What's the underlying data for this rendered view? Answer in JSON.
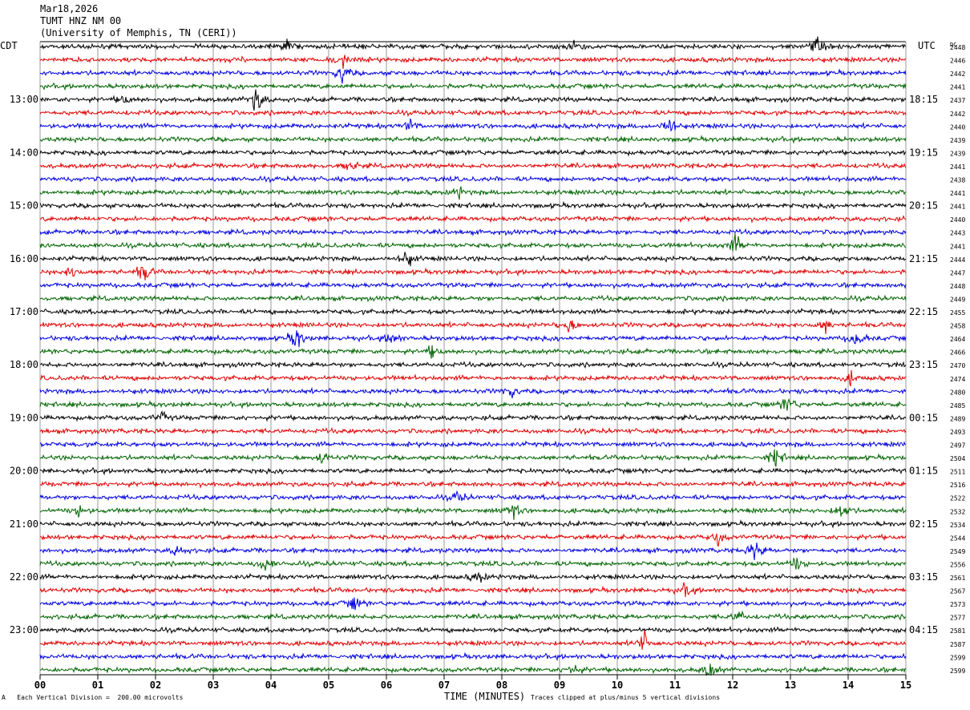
{
  "header": {
    "date": "Mar18,2026",
    "station": "TUMT HNZ NM 00",
    "institution": "(University of Memphis, TN (CERI))"
  },
  "labels": {
    "left_tz": "CDT",
    "right_tz": "UTC",
    "dc": "DC",
    "x_title": "TIME (MINUTES)",
    "scale_note": "Each Vertical Division =  200.00 microvolts",
    "clip_note": "Traces clipped at plus/minus 5 vertical divisions",
    "corner_mark": "A"
  },
  "colors": {
    "background": "#ffffff",
    "grid": "#808080",
    "trace_cycle": [
      "#000000",
      "#e00000",
      "#0000e0",
      "#006400"
    ]
  },
  "chart_data": {
    "type": "line",
    "title": "",
    "xlabel": "TIME (MINUTES)",
    "xlim": [
      0,
      15
    ],
    "x_ticks": [
      "00",
      "01",
      "02",
      "03",
      "04",
      "05",
      "06",
      "07",
      "08",
      "09",
      "10",
      "11",
      "12",
      "13",
      "14",
      "15"
    ],
    "rows": 48,
    "left_hour_labels": [
      "13:00",
      "14:00",
      "15:00",
      "16:00",
      "17:00",
      "18:00",
      "19:00",
      "20:00",
      "21:00",
      "22:00",
      "23:00"
    ],
    "right_hour_labels": [
      "18:15",
      "19:15",
      "20:15",
      "21:15",
      "22:15",
      "23:15",
      "00:15",
      "01:15",
      "02:15",
      "03:15",
      "04:15"
    ],
    "hour_label_first_row": 4,
    "hour_label_every": 4,
    "dc_values": [
      2448,
      2446,
      2442,
      2441,
      2437,
      2442,
      2440,
      2439,
      2439,
      2441,
      2438,
      2441,
      2441,
      2440,
      2443,
      2441,
      2444,
      2447,
      2448,
      2449,
      2455,
      2458,
      2464,
      2466,
      2470,
      2474,
      2480,
      2485,
      2489,
      2493,
      2497,
      2504,
      2511,
      2516,
      2522,
      2532,
      2534,
      2544,
      2549,
      2556,
      2561,
      2567,
      2573,
      2577,
      2581,
      2587,
      2599,
      2599
    ],
    "events": [
      {
        "row": 0,
        "minute": 9.25,
        "amp": 8
      },
      {
        "row": 0,
        "minute": 13.45,
        "amp": 10
      },
      {
        "row": 0,
        "minute": 4.3,
        "amp": 5
      },
      {
        "row": 1,
        "minute": 5.2,
        "amp": 9
      },
      {
        "row": 2,
        "minute": 5.25,
        "amp": 10
      },
      {
        "row": 4,
        "minute": 3.75,
        "amp": 14
      },
      {
        "row": 4,
        "minute": 1.45,
        "amp": 5
      },
      {
        "row": 6,
        "minute": 10.9,
        "amp": 12
      },
      {
        "row": 6,
        "minute": 6.4,
        "amp": 6
      },
      {
        "row": 9,
        "minute": 5.4,
        "amp": 6
      },
      {
        "row": 11,
        "minute": 7.25,
        "amp": 5
      },
      {
        "row": 15,
        "minute": 12.05,
        "amp": 10
      },
      {
        "row": 16,
        "minute": 6.35,
        "amp": 9
      },
      {
        "row": 17,
        "minute": 1.8,
        "amp": 9
      },
      {
        "row": 17,
        "minute": 0.55,
        "amp": 6
      },
      {
        "row": 21,
        "minute": 9.15,
        "amp": 8
      },
      {
        "row": 21,
        "minute": 13.6,
        "amp": 6
      },
      {
        "row": 22,
        "minute": 4.45,
        "amp": 12
      },
      {
        "row": 22,
        "minute": 6.1,
        "amp": 7
      },
      {
        "row": 22,
        "minute": 14.15,
        "amp": 10
      },
      {
        "row": 23,
        "minute": 6.8,
        "amp": 6
      },
      {
        "row": 25,
        "minute": 14.05,
        "amp": 5
      },
      {
        "row": 26,
        "minute": 8.15,
        "amp": 6
      },
      {
        "row": 27,
        "minute": 12.95,
        "amp": 9
      },
      {
        "row": 28,
        "minute": 2.1,
        "amp": 5
      },
      {
        "row": 31,
        "minute": 12.75,
        "amp": 9
      },
      {
        "row": 31,
        "minute": 4.9,
        "amp": 6
      },
      {
        "row": 34,
        "minute": 7.25,
        "amp": 6
      },
      {
        "row": 35,
        "minute": 0.7,
        "amp": 6
      },
      {
        "row": 35,
        "minute": 8.2,
        "amp": 7
      },
      {
        "row": 35,
        "minute": 13.9,
        "amp": 10
      },
      {
        "row": 37,
        "minute": 11.75,
        "amp": 6
      },
      {
        "row": 38,
        "minute": 12.4,
        "amp": 12
      },
      {
        "row": 38,
        "minute": 2.4,
        "amp": 6
      },
      {
        "row": 39,
        "minute": 3.9,
        "amp": 7
      },
      {
        "row": 39,
        "minute": 13.1,
        "amp": 7
      },
      {
        "row": 40,
        "minute": 7.6,
        "amp": 6
      },
      {
        "row": 41,
        "minute": 11.2,
        "amp": 6
      },
      {
        "row": 42,
        "minute": 5.45,
        "amp": 7
      },
      {
        "row": 43,
        "minute": 12.1,
        "amp": 6
      },
      {
        "row": 45,
        "minute": 10.45,
        "amp": 11
      },
      {
        "row": 47,
        "minute": 11.6,
        "amp": 8
      },
      {
        "row": 47,
        "minute": 9.25,
        "amp": 6
      }
    ]
  }
}
